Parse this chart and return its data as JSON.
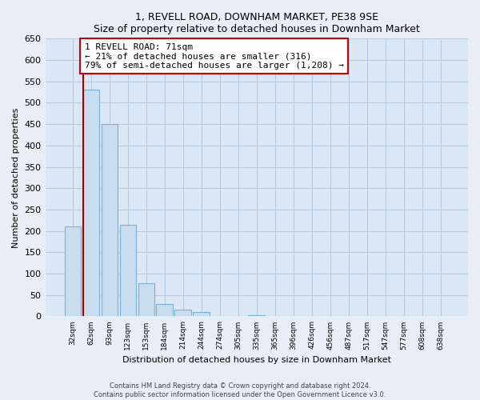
{
  "title": "1, REVELL ROAD, DOWNHAM MARKET, PE38 9SE",
  "subtitle": "Size of property relative to detached houses in Downham Market",
  "xlabel": "Distribution of detached houses by size in Downham Market",
  "ylabel": "Number of detached properties",
  "bar_labels": [
    "32sqm",
    "62sqm",
    "93sqm",
    "123sqm",
    "153sqm",
    "184sqm",
    "214sqm",
    "244sqm",
    "274sqm",
    "305sqm",
    "335sqm",
    "365sqm",
    "396sqm",
    "426sqm",
    "456sqm",
    "487sqm",
    "517sqm",
    "547sqm",
    "577sqm",
    "608sqm",
    "638sqm"
  ],
  "bar_values": [
    210,
    530,
    450,
    215,
    78,
    28,
    16,
    10,
    0,
    0,
    2,
    0,
    0,
    0,
    0,
    1,
    0,
    0,
    0,
    1,
    1
  ],
  "bar_color": "#c8ddf0",
  "bar_edge_color": "#7bafd4",
  "marker_line_color": "#aa0000",
  "annotation_title": "1 REVELL ROAD: 71sqm",
  "annotation_line1": "← 21% of detached houses are smaller (316)",
  "annotation_line2": "79% of semi-detached houses are larger (1,208) →",
  "annotation_box_color": "#ffffff",
  "annotation_box_edge": "#cc0000",
  "ylim": [
    0,
    650
  ],
  "yticks": [
    0,
    50,
    100,
    150,
    200,
    250,
    300,
    350,
    400,
    450,
    500,
    550,
    600,
    650
  ],
  "footer_line1": "Contains HM Land Registry data © Crown copyright and database right 2024.",
  "footer_line2": "Contains public sector information licensed under the Open Government Licence v3.0.",
  "bg_color": "#e8eef5",
  "plot_bg_color": "#dce8f5",
  "grid_color": "#b8cce0"
}
